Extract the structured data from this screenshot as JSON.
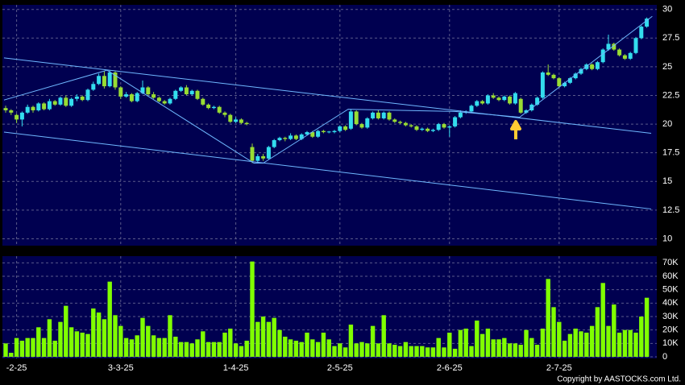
{
  "chart_data": {
    "type": "candlestick",
    "up_color": "#33ddee",
    "down_color": "#99dd33",
    "categories": [
      null,
      null,
      "-2-25",
      null,
      null,
      null,
      null,
      null,
      null,
      null,
      null,
      null,
      null,
      null,
      null,
      null,
      null,
      null,
      null,
      null,
      null,
      "3-3-25",
      null,
      null,
      null,
      null,
      null,
      null,
      null,
      null,
      null,
      null,
      null,
      null,
      null,
      null,
      null,
      null,
      null,
      null,
      null,
      null,
      "1-4-25",
      null,
      null,
      null,
      null,
      null,
      null,
      null,
      null,
      null,
      null,
      null,
      null,
      null,
      null,
      null,
      null,
      null,
      null,
      "2-5-25",
      null,
      null,
      null,
      null,
      null,
      null,
      null,
      null,
      null,
      null,
      null,
      null,
      null,
      null,
      null,
      null,
      null,
      null,
      null,
      "2-6-25",
      null,
      null,
      null,
      null,
      null,
      null,
      null,
      null,
      null,
      null,
      null,
      null,
      null,
      null,
      null,
      null,
      null,
      null,
      null,
      "2-7-25",
      null,
      null,
      null,
      null,
      null,
      null,
      null,
      null,
      null,
      null,
      null,
      null,
      null,
      null,
      null,
      null
    ],
    "open": [
      21.4,
      21.2,
      20.8,
      20.4,
      21.0,
      21.5,
      21.2,
      21.8,
      21.3,
      22.0,
      21.7,
      22.3,
      21.6,
      22.2,
      22.4,
      22.1,
      23.0,
      23.5,
      24.2,
      23.3,
      24.5,
      23.2,
      22.4,
      22.6,
      22.0,
      22.7,
      23.2,
      22.6,
      22.3,
      22.0,
      21.8,
      22.2,
      22.9,
      23.2,
      22.6,
      22.9,
      22.2,
      21.7,
      21.4,
      21.5,
      21.0,
      20.8,
      20.2,
      20.4,
      20.1,
      18.0,
      16.8,
      17.2,
      17.0,
      18.0,
      18.6,
      18.8,
      18.7,
      19.0,
      18.7,
      19.1,
      19.3,
      18.9,
      19.4,
      19.3,
      19.3,
      19.4,
      19.8,
      19.6,
      21.1,
      20.0,
      19.7,
      20.5,
      21.0,
      20.5,
      21.0,
      20.4,
      20.2,
      20.1,
      19.9,
      19.8,
      19.5,
      19.6,
      19.4,
      19.5,
      20.0,
      19.7,
      19.8,
      20.6,
      21.0,
      21.1,
      21.6,
      22.0,
      21.8,
      22.5,
      22.3,
      22.1,
      22.4,
      21.8,
      22.2,
      21.0,
      21.2,
      21.7,
      22.3,
      24.5,
      24.3,
      24.0,
      23.3,
      23.6,
      24.0,
      24.4,
      24.8,
      25.2,
      24.8,
      25.4,
      26.5,
      27.0,
      26.5,
      26.0,
      25.7,
      26.2,
      27.5,
      28.5
    ],
    "close": [
      21.2,
      21.0,
      20.4,
      21.0,
      21.5,
      21.2,
      21.8,
      21.3,
      22.0,
      21.7,
      22.3,
      21.6,
      22.2,
      22.4,
      22.1,
      23.0,
      23.5,
      24.2,
      23.3,
      24.5,
      23.2,
      22.4,
      22.6,
      22.0,
      22.7,
      23.2,
      22.6,
      22.3,
      22.0,
      21.8,
      22.2,
      22.9,
      23.2,
      22.6,
      22.9,
      22.2,
      21.7,
      21.4,
      21.5,
      21.0,
      20.8,
      20.2,
      20.4,
      20.1,
      20.0,
      16.8,
      17.2,
      17.0,
      18.0,
      18.6,
      18.8,
      18.7,
      19.0,
      18.7,
      19.1,
      19.3,
      18.9,
      19.4,
      19.3,
      19.35,
      19.4,
      19.8,
      19.5,
      21.1,
      20.0,
      19.7,
      20.5,
      21.0,
      20.5,
      21.0,
      20.4,
      20.2,
      20.1,
      19.9,
      19.8,
      19.5,
      19.6,
      19.4,
      19.5,
      20.0,
      19.7,
      19.8,
      20.6,
      21.0,
      21.1,
      21.6,
      22.0,
      21.8,
      22.5,
      22.3,
      22.1,
      22.4,
      21.8,
      22.7,
      21.0,
      21.2,
      21.7,
      22.3,
      24.5,
      24.3,
      24.0,
      23.3,
      23.6,
      24.0,
      24.4,
      24.8,
      25.2,
      24.8,
      25.4,
      26.5,
      27.0,
      26.5,
      26.0,
      25.7,
      26.2,
      27.5,
      28.5,
      29.2
    ],
    "high": [
      21.6,
      21.3,
      20.9,
      21.1,
      21.7,
      21.6,
      21.9,
      21.9,
      22.2,
      22.1,
      22.4,
      22.5,
      22.3,
      22.6,
      22.5,
      23.1,
      23.7,
      24.4,
      24.6,
      24.7,
      24.6,
      23.3,
      22.8,
      22.7,
      22.8,
      23.8,
      23.3,
      22.8,
      22.4,
      22.1,
      22.3,
      23.0,
      23.3,
      23.4,
      23.0,
      23.0,
      22.3,
      21.8,
      21.6,
      21.6,
      21.1,
      20.9,
      20.6,
      20.5,
      20.2,
      18.3,
      17.4,
      17.4,
      18.1,
      18.7,
      18.9,
      18.9,
      19.2,
      19.1,
      19.2,
      19.4,
      19.4,
      19.5,
      19.5,
      19.4,
      19.5,
      19.9,
      19.9,
      21.3,
      21.2,
      20.1,
      20.6,
      21.1,
      21.2,
      21.1,
      21.1,
      20.5,
      20.3,
      20.2,
      20.0,
      19.9,
      19.7,
      19.7,
      19.6,
      20.1,
      20.1,
      19.9,
      20.7,
      21.2,
      21.2,
      21.7,
      22.1,
      22.1,
      22.6,
      22.7,
      22.4,
      22.5,
      22.5,
      22.8,
      22.3,
      21.3,
      21.8,
      22.4,
      24.6,
      25.2,
      24.4,
      24.1,
      23.7,
      24.1,
      24.5,
      24.9,
      25.3,
      25.3,
      25.5,
      26.6,
      27.8,
      27.1,
      26.6,
      26.1,
      26.3,
      27.6,
      28.6,
      29.3
    ],
    "low": [
      21.0,
      20.8,
      20.1,
      19.8,
      20.9,
      21.0,
      21.1,
      21.2,
      21.2,
      21.6,
      21.6,
      21.5,
      21.5,
      22.0,
      22.0,
      22.0,
      22.9,
      23.4,
      23.1,
      23.2,
      23.0,
      22.2,
      22.3,
      21.9,
      21.9,
      22.6,
      22.5,
      22.2,
      21.9,
      21.7,
      21.7,
      22.1,
      22.8,
      22.5,
      22.5,
      22.1,
      21.6,
      21.3,
      21.3,
      20.9,
      20.6,
      20.1,
      20.1,
      20.0,
      19.9,
      16.6,
      16.6,
      16.8,
      16.9,
      17.9,
      18.5,
      18.5,
      18.6,
      18.6,
      18.6,
      19.0,
      18.8,
      18.8,
      19.2,
      19.2,
      19.2,
      19.3,
      19.4,
      19.5,
      19.9,
      19.6,
      19.6,
      20.4,
      20.4,
      20.4,
      20.3,
      20.1,
      20.0,
      19.8,
      19.7,
      19.4,
      19.4,
      19.3,
      19.3,
      19.4,
      19.6,
      18.9,
      19.7,
      20.5,
      20.9,
      21.0,
      21.5,
      21.7,
      21.7,
      22.2,
      22.0,
      22.0,
      21.7,
      21.7,
      20.9,
      20.9,
      21.1,
      21.6,
      22.2,
      24.2,
      23.9,
      23.2,
      23.2,
      23.5,
      23.9,
      24.3,
      24.7,
      24.7,
      24.7,
      25.3,
      26.4,
      26.4,
      25.9,
      25.6,
      25.6,
      26.1,
      27.4,
      28.4
    ],
    "ylim": [
      9.4,
      30.4
    ],
    "yticks": [
      10,
      12.5,
      15,
      17.5,
      20,
      22.5,
      25,
      27.5,
      30
    ],
    "grid": true,
    "trendlines": [
      {
        "color": "#6fb8ff",
        "x": [
          -0.3,
          117.8
        ],
        "y": [
          25.77,
          19.2
        ]
      },
      {
        "color": "#6fb8ff",
        "x": [
          -0.3,
          117.8
        ],
        "y": [
          19.3,
          12.6
        ]
      },
      {
        "color": "#6fb8ff",
        "x": [
          -0.3,
          18.5,
          45.3,
          47,
          62.5,
          82,
          93.8,
          118
        ],
        "y": [
          22.1,
          24.7,
          16.6,
          16.6,
          21.3,
          21.1,
          20.6,
          29.4
        ]
      }
    ],
    "volume": {
      "color": "#80ff00",
      "values": [
        10000,
        3000,
        14000,
        12000,
        14000,
        14000,
        22000,
        14000,
        28000,
        12000,
        26000,
        38000,
        22000,
        19000,
        18000,
        17000,
        36000,
        33000,
        28000,
        56000,
        31000,
        23000,
        14000,
        13000,
        16000,
        29000,
        23000,
        16000,
        14000,
        14000,
        31000,
        15000,
        11000,
        11000,
        10000,
        13000,
        19000,
        11000,
        11000,
        11000,
        18000,
        21000,
        10000,
        8000,
        12000,
        71000,
        26000,
        30000,
        26000,
        29000,
        20000,
        15000,
        13000,
        12000,
        11000,
        18000,
        13000,
        11000,
        18000,
        13000,
        8000,
        10000,
        7000,
        24000,
        10000,
        11000,
        10000,
        23000,
        10000,
        31000,
        10000,
        9000,
        8000,
        11000,
        8000,
        8000,
        8000,
        7000,
        7000,
        14000,
        7000,
        18000,
        6000,
        20000,
        21000,
        8000,
        27000,
        17000,
        21000,
        13000,
        13000,
        14000,
        10000,
        10000,
        9000,
        20000,
        14000,
        9000,
        21000,
        58000,
        37000,
        26000,
        12000,
        17000,
        21000,
        19000,
        18000,
        23000,
        37000,
        55000,
        23000,
        39000,
        18000,
        20000,
        20000,
        18000,
        30000,
        44000
      ],
      "ylim": [
        0,
        75000
      ],
      "yticks": [
        0,
        {
          "value": 10000,
          "label": "10K"
        },
        {
          "value": 20000,
          "label": "20K"
        },
        {
          "value": 30000,
          "label": "30K"
        },
        {
          "value": 40000,
          "label": "40K"
        },
        {
          "value": 50000,
          "label": "50K"
        },
        {
          "value": 60000,
          "label": "60K"
        },
        {
          "value": 70000,
          "label": "70K"
        }
      ]
    },
    "copyright": "Copyright by AASTOCKS.com Ltd."
  }
}
